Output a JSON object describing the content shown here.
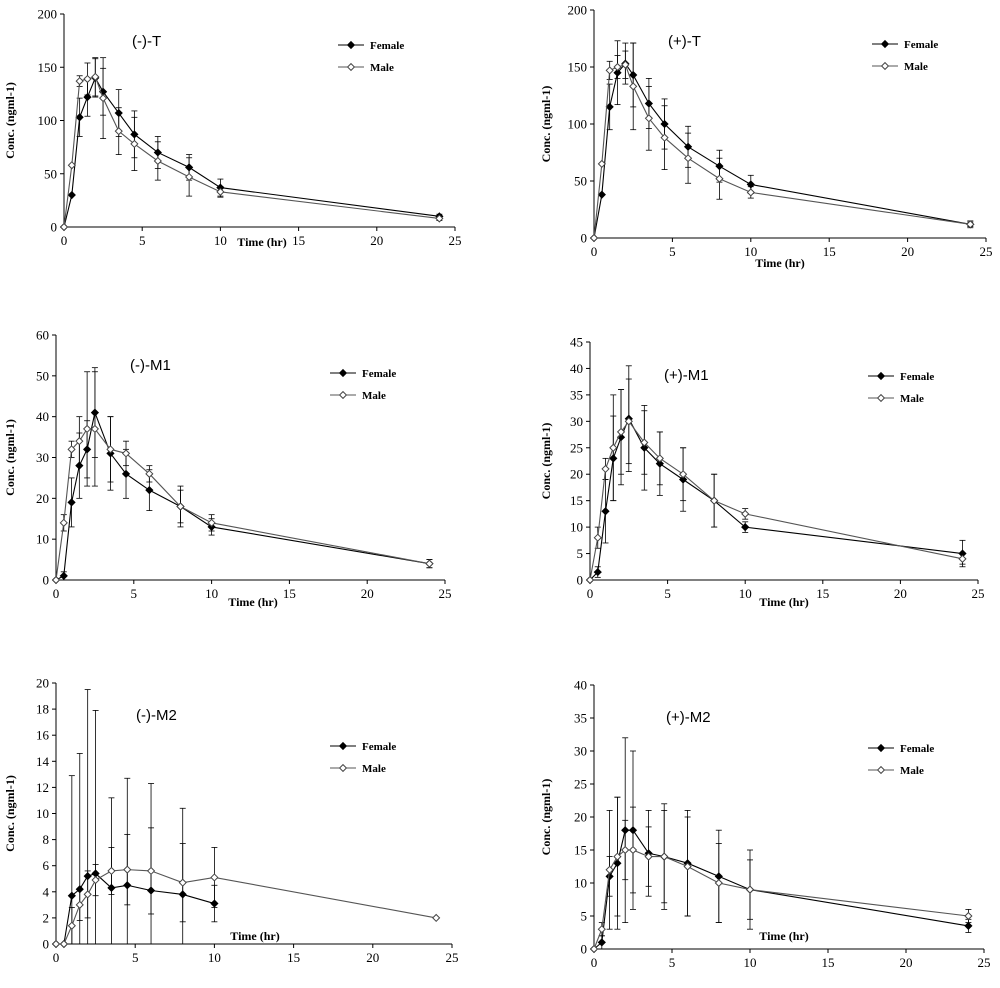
{
  "chart_data": [
    {
      "type": "line",
      "title": "(-)-T",
      "xlabel": "Time (hr)",
      "ylabel": "Conc. (ngml-1)",
      "xlim": [
        0,
        25
      ],
      "ylim": [
        0,
        200
      ],
      "xticks": [
        0,
        5,
        10,
        15,
        20,
        25
      ],
      "yticks": [
        0,
        50,
        100,
        150,
        200
      ],
      "legend": "top-right",
      "series": [
        {
          "name": "Female",
          "marker": "filled-diamond",
          "x": [
            0,
            0.5,
            1,
            1.5,
            2,
            2.5,
            3.5,
            4.5,
            6,
            8,
            10,
            24
          ],
          "y": [
            0,
            30,
            103,
            122,
            140,
            127,
            107,
            87,
            70,
            56,
            37,
            10
          ],
          "err": [
            0,
            0,
            18,
            18,
            18,
            22,
            22,
            22,
            15,
            12,
            8,
            2
          ]
        },
        {
          "name": "Male",
          "marker": "open-diamond",
          "x": [
            0,
            0.5,
            1,
            1.5,
            2,
            2.5,
            3.5,
            4.5,
            6,
            8,
            10,
            24
          ],
          "y": [
            0,
            58,
            137,
            139,
            141,
            121,
            90,
            78,
            62,
            47,
            33,
            8
          ],
          "err": [
            0,
            0,
            5,
            15,
            18,
            38,
            22,
            25,
            18,
            18,
            5,
            2
          ]
        }
      ]
    },
    {
      "type": "line",
      "title": "(+)-T",
      "xlabel": "Time (hr)",
      "ylabel": "Conc. (ngml-1)",
      "xlim": [
        0,
        25
      ],
      "ylim": [
        0,
        200
      ],
      "xticks": [
        0,
        5,
        10,
        15,
        20,
        25
      ],
      "yticks": [
        0,
        50,
        100,
        150,
        200
      ],
      "legend": "top-right",
      "series": [
        {
          "name": "Female",
          "marker": "filled-diamond",
          "x": [
            0,
            0.5,
            1,
            1.5,
            2,
            2.5,
            3.5,
            4.5,
            6,
            8,
            10,
            24
          ],
          "y": [
            0,
            38,
            115,
            145,
            153,
            143,
            118,
            100,
            80,
            63,
            47,
            12
          ],
          "err": [
            0,
            0,
            20,
            28,
            18,
            28,
            22,
            22,
            18,
            14,
            8,
            3
          ]
        },
        {
          "name": "Male",
          "marker": "open-diamond",
          "x": [
            0,
            0.5,
            1,
            1.5,
            2,
            2.5,
            3.5,
            4.5,
            6,
            8,
            10,
            24
          ],
          "y": [
            0,
            65,
            147,
            150,
            152,
            133,
            105,
            88,
            70,
            52,
            40,
            12
          ],
          "err": [
            0,
            0,
            8,
            10,
            12,
            38,
            28,
            28,
            22,
            18,
            5,
            2
          ]
        }
      ]
    },
    {
      "type": "line",
      "title": "(-)-M1",
      "xlabel": "Time (hr)",
      "ylabel": "Conc. (ngml-1)",
      "xlim": [
        0,
        25
      ],
      "ylim": [
        0,
        60
      ],
      "xticks": [
        0,
        5,
        10,
        15,
        20,
        25
      ],
      "yticks": [
        0,
        10,
        20,
        30,
        40,
        50,
        60
      ],
      "legend": "top-right",
      "series": [
        {
          "name": "Female",
          "marker": "filled-diamond",
          "x": [
            0,
            0.5,
            1,
            1.5,
            2,
            2.5,
            3.5,
            4.5,
            6,
            8,
            10,
            24
          ],
          "y": [
            0,
            1,
            19,
            28,
            32,
            41,
            31,
            26,
            22,
            18,
            13,
            4
          ],
          "err": [
            0,
            1,
            6,
            8,
            7,
            11,
            9,
            6,
            5,
            5,
            2,
            1
          ]
        },
        {
          "name": "Male",
          "marker": "open-diamond",
          "x": [
            0,
            0.5,
            1,
            1.5,
            2,
            2.5,
            3.5,
            4.5,
            6,
            8,
            10,
            24
          ],
          "y": [
            0,
            14,
            32,
            34,
            37,
            37,
            32,
            31,
            26,
            18,
            14,
            4
          ],
          "err": [
            0,
            2,
            2,
            6,
            14,
            14,
            8,
            3,
            2,
            4,
            2,
            1
          ]
        }
      ]
    },
    {
      "type": "line",
      "title": "(+)-M1",
      "xlabel": "Time (hr)",
      "ylabel": "Conc. (ngml-1)",
      "xlim": [
        0,
        25
      ],
      "ylim": [
        0,
        45
      ],
      "xticks": [
        0,
        5,
        10,
        15,
        20,
        25
      ],
      "yticks": [
        0,
        5,
        10,
        15,
        20,
        25,
        30,
        35,
        40,
        45
      ],
      "legend": "top-right",
      "series": [
        {
          "name": "Female",
          "marker": "filled-diamond",
          "x": [
            0,
            0.5,
            1,
            1.5,
            2,
            2.5,
            3.5,
            4.5,
            6,
            8,
            10,
            24
          ],
          "y": [
            0,
            1.5,
            13,
            23,
            27,
            30.5,
            25,
            22,
            19,
            15,
            10,
            5
          ],
          "err": [
            0,
            1,
            6,
            8,
            9,
            10,
            8,
            6,
            6,
            5,
            1,
            2.5
          ]
        },
        {
          "name": "Male",
          "marker": "open-diamond",
          "x": [
            0,
            0.5,
            1,
            1.5,
            2,
            2.5,
            3.5,
            4.5,
            6,
            8,
            10,
            24
          ],
          "y": [
            0,
            8,
            21,
            25,
            28,
            30,
            26,
            23,
            20,
            15,
            12.5,
            4
          ],
          "err": [
            0,
            2,
            2,
            10,
            8,
            8,
            6,
            5,
            5,
            5,
            1,
            1
          ]
        }
      ]
    },
    {
      "type": "line",
      "title": "(-)-M2",
      "xlabel": "Time (hr)",
      "ylabel": "Conc. (ngml-1)",
      "xlim": [
        0,
        25
      ],
      "ylim": [
        0,
        20
      ],
      "xticks": [
        0,
        5,
        10,
        15,
        20,
        25
      ],
      "yticks": [
        0,
        2,
        4,
        6,
        8,
        10,
        12,
        14,
        16,
        18,
        20
      ],
      "legend": "top-right",
      "series": [
        {
          "name": "Female",
          "marker": "filled-diamond",
          "x": [
            0,
            0.5,
            1,
            1.5,
            2,
            2.5,
            3.5,
            4.5,
            6,
            8,
            10
          ],
          "y": [
            0,
            0,
            3.7,
            4.2,
            5.2,
            5.4,
            4.3,
            4.5,
            4.1,
            3.8,
            3.1
          ],
          "err": [
            0,
            0,
            9.2,
            10.4,
            14.3,
            12.5,
            6.9,
            8.2,
            8.2,
            6.6,
            1.4
          ]
        },
        {
          "name": "Male",
          "marker": "open-diamond",
          "x": [
            0,
            0.5,
            1,
            1.5,
            2,
            2.5,
            3.5,
            4.5,
            6,
            8,
            10,
            24
          ],
          "y": [
            0,
            0,
            1.4,
            3.0,
            3.8,
            4.9,
            5.6,
            5.7,
            5.6,
            4.7,
            5.1,
            2.0
          ],
          "err": [
            0,
            0,
            1.4,
            1.2,
            1.8,
            1.2,
            1.8,
            2.7,
            3.3,
            3.0,
            2.3,
            0
          ]
        }
      ]
    },
    {
      "type": "line",
      "title": "(+)-M2",
      "xlabel": "Time (hr)",
      "ylabel": "Conc. (ngml-1)",
      "xlim": [
        0,
        25
      ],
      "ylim": [
        0,
        40
      ],
      "xticks": [
        0,
        5,
        10,
        15,
        20,
        25
      ],
      "yticks": [
        0,
        5,
        10,
        15,
        20,
        25,
        30,
        35,
        40
      ],
      "legend": "top-right",
      "series": [
        {
          "name": "Female",
          "marker": "filled-diamond",
          "x": [
            0,
            0.5,
            1,
            1.5,
            2,
            2.5,
            3.5,
            4.5,
            6,
            8,
            10,
            24
          ],
          "y": [
            0,
            1,
            11,
            13,
            18,
            18,
            14.5,
            14,
            13,
            11,
            9,
            3.5
          ],
          "err": [
            0,
            1,
            3,
            10,
            14,
            12,
            6.5,
            8,
            8,
            7,
            4.5,
            1
          ]
        },
        {
          "name": "Male",
          "marker": "open-diamond",
          "x": [
            0,
            0.5,
            1,
            1.5,
            2,
            2.5,
            3.5,
            4.5,
            6,
            8,
            10,
            24
          ],
          "y": [
            0,
            3,
            12,
            14,
            15,
            15,
            14,
            14,
            12.5,
            10,
            9,
            5
          ],
          "err": [
            0,
            1,
            9,
            9,
            4.5,
            6.5,
            4.5,
            7,
            7.5,
            6,
            6,
            1
          ]
        }
      ]
    }
  ]
}
